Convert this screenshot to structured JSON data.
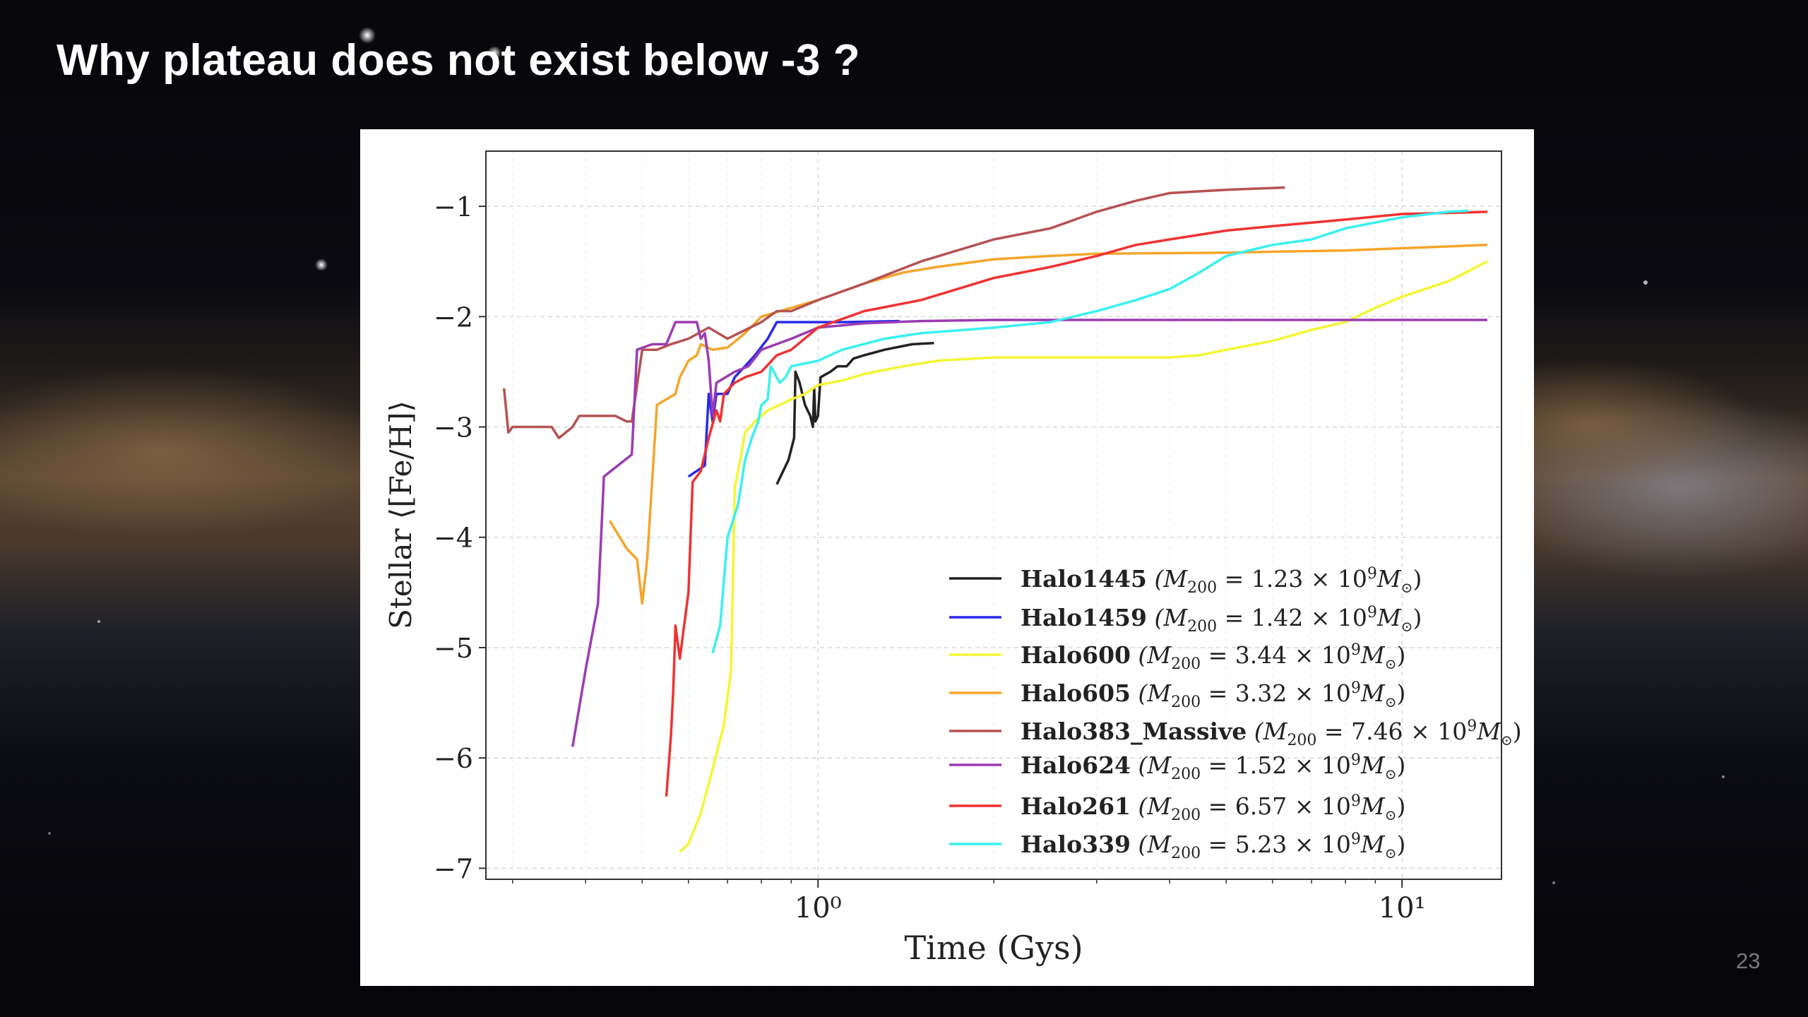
{
  "slide": {
    "title": "Why plateau does not exist below -3 ?",
    "page_number": "23"
  },
  "chart_data": {
    "type": "line",
    "title": "",
    "xlabel": "Time (Gys)",
    "ylabel": "Stellar ⟨[Fe/H]⟩",
    "xscale": "log",
    "xlim": [
      0.27,
      14.8
    ],
    "ylim": [
      -7.1,
      -0.5
    ],
    "x_ticks": [
      {
        "value": 1,
        "label": "10⁰"
      },
      {
        "value": 10,
        "label": "10¹"
      }
    ],
    "y_ticks": [
      {
        "value": -1,
        "label": "−1"
      },
      {
        "value": -2,
        "label": "−2"
      },
      {
        "value": -3,
        "label": "−3"
      },
      {
        "value": -4,
        "label": "−4"
      },
      {
        "value": -5,
        "label": "−5"
      },
      {
        "value": -6,
        "label": "−6"
      },
      {
        "value": -7,
        "label": "−7"
      }
    ],
    "grid": true,
    "legend_position": "lower-right",
    "series": [
      {
        "name": "Halo1445",
        "mass": "1.23",
        "color": "#222222",
        "points": [
          [
            0.85,
            -3.52
          ],
          [
            0.89,
            -3.3
          ],
          [
            0.91,
            -3.1
          ],
          [
            0.915,
            -2.5
          ],
          [
            0.93,
            -2.6
          ],
          [
            0.95,
            -2.8
          ],
          [
            0.97,
            -2.9
          ],
          [
            0.98,
            -3.0
          ],
          [
            0.985,
            -2.65
          ],
          [
            0.99,
            -2.95
          ],
          [
            1.0,
            -2.9
          ],
          [
            1.01,
            -2.55
          ],
          [
            1.05,
            -2.5
          ],
          [
            1.08,
            -2.45
          ],
          [
            1.12,
            -2.45
          ],
          [
            1.15,
            -2.38
          ],
          [
            1.2,
            -2.35
          ],
          [
            1.3,
            -2.3
          ],
          [
            1.45,
            -2.25
          ],
          [
            1.58,
            -2.24
          ]
        ]
      },
      {
        "name": "Halo1459",
        "mass": "1.42",
        "color": "#2a2ae8",
        "points": [
          [
            0.6,
            -3.45
          ],
          [
            0.64,
            -3.35
          ],
          [
            0.65,
            -2.7
          ],
          [
            0.66,
            -2.95
          ],
          [
            0.67,
            -2.7
          ],
          [
            0.7,
            -2.7
          ],
          [
            0.72,
            -2.55
          ],
          [
            0.75,
            -2.45
          ],
          [
            0.78,
            -2.35
          ],
          [
            0.82,
            -2.2
          ],
          [
            0.85,
            -2.05
          ],
          [
            0.9,
            -2.05
          ],
          [
            1.1,
            -2.05
          ],
          [
            1.38,
            -2.04
          ]
        ]
      },
      {
        "name": "Halo600",
        "mass": "3.44",
        "color": "#f5f532",
        "points": [
          [
            0.58,
            -6.85
          ],
          [
            0.6,
            -6.78
          ],
          [
            0.63,
            -6.5
          ],
          [
            0.66,
            -6.1
          ],
          [
            0.69,
            -5.7
          ],
          [
            0.71,
            -5.2
          ],
          [
            0.72,
            -3.55
          ],
          [
            0.73,
            -3.4
          ],
          [
            0.75,
            -3.05
          ],
          [
            0.78,
            -2.95
          ],
          [
            0.82,
            -2.85
          ],
          [
            0.86,
            -2.8
          ],
          [
            0.9,
            -2.75
          ],
          [
            0.95,
            -2.7
          ],
          [
            1.0,
            -2.62
          ],
          [
            1.1,
            -2.58
          ],
          [
            1.2,
            -2.52
          ],
          [
            1.4,
            -2.45
          ],
          [
            1.6,
            -2.4
          ],
          [
            2.0,
            -2.37
          ],
          [
            3.0,
            -2.37
          ],
          [
            4.0,
            -2.37
          ],
          [
            4.5,
            -2.35
          ],
          [
            5.0,
            -2.3
          ],
          [
            6.0,
            -2.22
          ],
          [
            7.0,
            -2.12
          ],
          [
            8.0,
            -2.05
          ],
          [
            9.0,
            -1.92
          ],
          [
            10.0,
            -1.82
          ],
          [
            12.0,
            -1.68
          ],
          [
            14.0,
            -1.5
          ]
        ]
      },
      {
        "name": "Halo605",
        "mass": "3.32",
        "color": "#f5a52a",
        "points": [
          [
            0.44,
            -3.85
          ],
          [
            0.47,
            -4.1
          ],
          [
            0.49,
            -4.2
          ],
          [
            0.5,
            -4.6
          ],
          [
            0.51,
            -4.2
          ],
          [
            0.53,
            -2.8
          ],
          [
            0.55,
            -2.75
          ],
          [
            0.57,
            -2.7
          ],
          [
            0.58,
            -2.55
          ],
          [
            0.6,
            -2.4
          ],
          [
            0.62,
            -2.35
          ],
          [
            0.63,
            -2.25
          ],
          [
            0.66,
            -2.3
          ],
          [
            0.7,
            -2.28
          ],
          [
            0.75,
            -2.15
          ],
          [
            0.8,
            -2.0
          ],
          [
            0.9,
            -1.92
          ],
          [
            1.0,
            -1.85
          ],
          [
            1.2,
            -1.7
          ],
          [
            1.4,
            -1.6
          ],
          [
            1.6,
            -1.55
          ],
          [
            2.0,
            -1.48
          ],
          [
            2.5,
            -1.45
          ],
          [
            3.0,
            -1.43
          ],
          [
            5.0,
            -1.42
          ],
          [
            8.0,
            -1.4
          ],
          [
            14.0,
            -1.35
          ]
        ]
      },
      {
        "name": "Halo383_Massive",
        "mass": "7.46",
        "color": "#b65252",
        "points": [
          [
            0.29,
            -2.65
          ],
          [
            0.295,
            -3.05
          ],
          [
            0.3,
            -3.0
          ],
          [
            0.33,
            -3.0
          ],
          [
            0.35,
            -3.0
          ],
          [
            0.36,
            -3.1
          ],
          [
            0.37,
            -3.05
          ],
          [
            0.38,
            -3.0
          ],
          [
            0.39,
            -2.9
          ],
          [
            0.42,
            -2.9
          ],
          [
            0.45,
            -2.9
          ],
          [
            0.47,
            -2.95
          ],
          [
            0.48,
            -2.95
          ],
          [
            0.5,
            -2.3
          ],
          [
            0.53,
            -2.3
          ],
          [
            0.56,
            -2.25
          ],
          [
            0.6,
            -2.2
          ],
          [
            0.65,
            -2.1
          ],
          [
            0.7,
            -2.2
          ],
          [
            0.8,
            -2.05
          ],
          [
            0.85,
            -1.95
          ],
          [
            0.9,
            -1.95
          ],
          [
            1.0,
            -1.85
          ],
          [
            1.2,
            -1.7
          ],
          [
            1.5,
            -1.5
          ],
          [
            2.0,
            -1.3
          ],
          [
            2.5,
            -1.2
          ],
          [
            3.0,
            -1.05
          ],
          [
            3.5,
            -0.95
          ],
          [
            4.0,
            -0.88
          ],
          [
            5.0,
            -0.85
          ],
          [
            6.3,
            -0.83
          ]
        ]
      },
      {
        "name": "Halo624",
        "mass": "1.52",
        "color": "#9b3cb2",
        "points": [
          [
            0.38,
            -5.9
          ],
          [
            0.4,
            -5.2
          ],
          [
            0.42,
            -4.6
          ],
          [
            0.43,
            -3.45
          ],
          [
            0.48,
            -3.25
          ],
          [
            0.49,
            -2.3
          ],
          [
            0.52,
            -2.25
          ],
          [
            0.55,
            -2.25
          ],
          [
            0.57,
            -2.05
          ],
          [
            0.62,
            -2.05
          ],
          [
            0.63,
            -2.2
          ],
          [
            0.64,
            -2.15
          ],
          [
            0.65,
            -2.4
          ],
          [
            0.66,
            -2.9
          ],
          [
            0.67,
            -2.6
          ],
          [
            0.72,
            -2.5
          ],
          [
            0.76,
            -2.45
          ],
          [
            0.8,
            -2.3
          ],
          [
            0.9,
            -2.2
          ],
          [
            1.0,
            -2.1
          ],
          [
            1.2,
            -2.06
          ],
          [
            1.5,
            -2.04
          ],
          [
            2.0,
            -2.03
          ],
          [
            3.0,
            -2.03
          ],
          [
            5.0,
            -2.03
          ],
          [
            8.0,
            -2.03
          ],
          [
            14.0,
            -2.03
          ]
        ]
      },
      {
        "name": "Halo261",
        "mass": "6.57",
        "color": "#f03232",
        "points": [
          [
            0.55,
            -6.35
          ],
          [
            0.56,
            -5.8
          ],
          [
            0.565,
            -5.4
          ],
          [
            0.57,
            -4.8
          ],
          [
            0.58,
            -5.1
          ],
          [
            0.6,
            -4.5
          ],
          [
            0.61,
            -3.5
          ],
          [
            0.63,
            -3.4
          ],
          [
            0.65,
            -3.1
          ],
          [
            0.67,
            -2.85
          ],
          [
            0.68,
            -2.95
          ],
          [
            0.69,
            -2.7
          ],
          [
            0.72,
            -2.6
          ],
          [
            0.75,
            -2.55
          ],
          [
            0.8,
            -2.5
          ],
          [
            0.85,
            -2.35
          ],
          [
            0.9,
            -2.3
          ],
          [
            1.0,
            -2.1
          ],
          [
            1.2,
            -1.95
          ],
          [
            1.5,
            -1.85
          ],
          [
            2.0,
            -1.65
          ],
          [
            2.5,
            -1.55
          ],
          [
            3.0,
            -1.45
          ],
          [
            3.5,
            -1.35
          ],
          [
            4.0,
            -1.3
          ],
          [
            5.0,
            -1.22
          ],
          [
            6.0,
            -1.18
          ],
          [
            8.0,
            -1.12
          ],
          [
            10.0,
            -1.07
          ],
          [
            12.0,
            -1.06
          ],
          [
            14.0,
            -1.05
          ]
        ]
      },
      {
        "name": "Halo339",
        "mass": "5.23",
        "color": "#3af0f0",
        "points": [
          [
            0.66,
            -5.05
          ],
          [
            0.68,
            -4.8
          ],
          [
            0.7,
            -4.0
          ],
          [
            0.72,
            -3.8
          ],
          [
            0.73,
            -3.7
          ],
          [
            0.75,
            -3.3
          ],
          [
            0.77,
            -3.1
          ],
          [
            0.79,
            -2.95
          ],
          [
            0.8,
            -2.8
          ],
          [
            0.82,
            -2.75
          ],
          [
            0.83,
            -2.45
          ],
          [
            0.86,
            -2.6
          ],
          [
            0.88,
            -2.55
          ],
          [
            0.9,
            -2.45
          ],
          [
            1.0,
            -2.4
          ],
          [
            1.1,
            -2.3
          ],
          [
            1.3,
            -2.2
          ],
          [
            1.5,
            -2.15
          ],
          [
            2.0,
            -2.1
          ],
          [
            2.5,
            -2.05
          ],
          [
            3.0,
            -1.95
          ],
          [
            3.5,
            -1.85
          ],
          [
            4.0,
            -1.75
          ],
          [
            4.5,
            -1.6
          ],
          [
            5.0,
            -1.45
          ],
          [
            6.0,
            -1.35
          ],
          [
            7.0,
            -1.3
          ],
          [
            8.0,
            -1.2
          ],
          [
            10.0,
            -1.1
          ],
          [
            12.0,
            -1.05
          ],
          [
            13.0,
            -1.04
          ]
        ]
      }
    ]
  }
}
